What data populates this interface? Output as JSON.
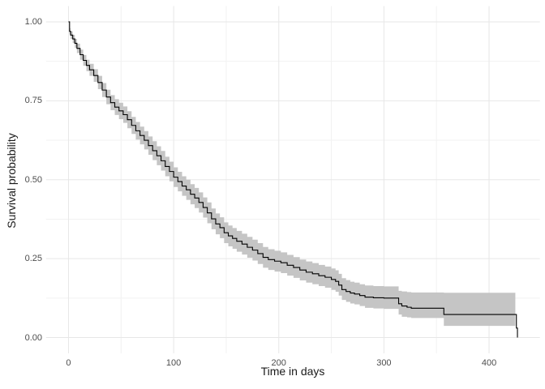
{
  "chart_data": {
    "type": "line",
    "subtype": "kaplan-meier-step-with-confidence-band",
    "title": "",
    "xlabel": "Time in days",
    "ylabel": "Survival probability",
    "x_ticks": [
      0,
      100,
      200,
      300,
      400
    ],
    "x_tick_labels": [
      "0",
      "100",
      "200",
      "300",
      "400"
    ],
    "x_minor_ticks": [
      50,
      150,
      250,
      350
    ],
    "y_ticks": [
      0.0,
      0.25,
      0.5,
      0.75,
      1.0
    ],
    "y_tick_labels": [
      "0.00",
      "0.25",
      "0.50",
      "0.75",
      "1.00"
    ],
    "y_minor_ticks": [
      0.125,
      0.375,
      0.625,
      0.875
    ],
    "xlim": [
      -21.35,
      448.35
    ],
    "ylim": [
      -0.05,
      1.05
    ],
    "grid": "major+minor",
    "legend": "none",
    "colors": {
      "line": "#000000",
      "ci_band": "#c5c5c5",
      "grid_major": "#e7e7e7",
      "grid_minor": "#f2f2f2",
      "tick_label": "#4d4d4d",
      "axis_title": "#1a1a1a",
      "background": "#ffffff"
    },
    "series": [
      {
        "name": "survival",
        "step": "after",
        "points": [
          [
            0,
            1.0
          ],
          [
            1,
            0.97
          ],
          [
            2,
            0.958
          ],
          [
            4,
            0.946
          ],
          [
            6,
            0.932
          ],
          [
            8,
            0.916
          ],
          [
            11,
            0.896
          ],
          [
            14,
            0.878
          ],
          [
            17,
            0.862
          ],
          [
            20,
            0.848
          ],
          [
            24,
            0.83
          ],
          [
            28,
            0.808
          ],
          [
            32,
            0.784
          ],
          [
            36,
            0.762
          ],
          [
            40,
            0.744
          ],
          [
            44,
            0.73
          ],
          [
            48,
            0.718
          ],
          [
            52,
            0.706
          ],
          [
            56,
            0.69
          ],
          [
            60,
            0.672
          ],
          [
            64,
            0.655
          ],
          [
            68,
            0.64
          ],
          [
            72,
            0.625
          ],
          [
            76,
            0.608
          ],
          [
            80,
            0.592
          ],
          [
            84,
            0.576
          ],
          [
            88,
            0.56
          ],
          [
            92,
            0.542
          ],
          [
            96,
            0.526
          ],
          [
            100,
            0.508
          ],
          [
            104,
            0.494
          ],
          [
            108,
            0.48
          ],
          [
            112,
            0.468
          ],
          [
            116,
            0.454
          ],
          [
            120,
            0.442
          ],
          [
            124,
            0.428
          ],
          [
            128,
            0.412
          ],
          [
            132,
            0.395
          ],
          [
            136,
            0.376
          ],
          [
            140,
            0.36
          ],
          [
            144,
            0.348
          ],
          [
            148,
            0.332
          ],
          [
            152,
            0.322
          ],
          [
            156,
            0.314
          ],
          [
            160,
            0.305
          ],
          [
            165,
            0.296
          ],
          [
            170,
            0.286
          ],
          [
            175,
            0.277
          ],
          [
            180,
            0.266
          ],
          [
            185,
            0.254
          ],
          [
            190,
            0.247
          ],
          [
            196,
            0.242
          ],
          [
            202,
            0.237
          ],
          [
            208,
            0.229
          ],
          [
            214,
            0.222
          ],
          [
            220,
            0.214
          ],
          [
            226,
            0.207
          ],
          [
            232,
            0.202
          ],
          [
            238,
            0.196
          ],
          [
            244,
            0.191
          ],
          [
            250,
            0.184
          ],
          [
            254,
            0.178
          ],
          [
            257,
            0.166
          ],
          [
            260,
            0.152
          ],
          [
            264,
            0.146
          ],
          [
            268,
            0.141
          ],
          [
            272,
            0.138
          ],
          [
            277,
            0.133
          ],
          [
            282,
            0.128
          ],
          [
            290,
            0.126
          ],
          [
            300,
            0.125
          ],
          [
            313,
            0.125
          ],
          [
            314,
            0.107
          ],
          [
            317,
            0.1
          ],
          [
            322,
            0.096
          ],
          [
            326,
            0.093
          ],
          [
            357,
            0.073
          ],
          [
            425,
            0.073
          ],
          [
            426,
            0.03
          ],
          [
            427,
            0.0
          ]
        ],
        "ci_band": [
          [
            0,
            1.0,
            1.0
          ],
          [
            1,
            0.96,
            0.98
          ],
          [
            2,
            0.946,
            0.97
          ],
          [
            4,
            0.933,
            0.959
          ],
          [
            6,
            0.918,
            0.946
          ],
          [
            8,
            0.901,
            0.931
          ],
          [
            11,
            0.88,
            0.912
          ],
          [
            14,
            0.861,
            0.895
          ],
          [
            17,
            0.844,
            0.88
          ],
          [
            20,
            0.829,
            0.867
          ],
          [
            24,
            0.81,
            0.85
          ],
          [
            28,
            0.787,
            0.829
          ],
          [
            32,
            0.762,
            0.806
          ],
          [
            36,
            0.739,
            0.785
          ],
          [
            40,
            0.72,
            0.768
          ],
          [
            44,
            0.705,
            0.755
          ],
          [
            48,
            0.692,
            0.744
          ],
          [
            52,
            0.68,
            0.732
          ],
          [
            56,
            0.663,
            0.717
          ],
          [
            60,
            0.645,
            0.699
          ],
          [
            64,
            0.627,
            0.683
          ],
          [
            68,
            0.612,
            0.668
          ],
          [
            72,
            0.596,
            0.654
          ],
          [
            76,
            0.579,
            0.637
          ],
          [
            80,
            0.562,
            0.622
          ],
          [
            84,
            0.546,
            0.606
          ],
          [
            88,
            0.529,
            0.591
          ],
          [
            92,
            0.511,
            0.573
          ],
          [
            96,
            0.495,
            0.557
          ],
          [
            100,
            0.477,
            0.539
          ],
          [
            104,
            0.463,
            0.525
          ],
          [
            108,
            0.449,
            0.511
          ],
          [
            112,
            0.436,
            0.5
          ],
          [
            116,
            0.422,
            0.486
          ],
          [
            120,
            0.41,
            0.474
          ],
          [
            124,
            0.396,
            0.46
          ],
          [
            128,
            0.38,
            0.444
          ],
          [
            132,
            0.362,
            0.428
          ],
          [
            136,
            0.343,
            0.409
          ],
          [
            140,
            0.327,
            0.393
          ],
          [
            144,
            0.315,
            0.381
          ],
          [
            148,
            0.299,
            0.365
          ],
          [
            152,
            0.289,
            0.355
          ],
          [
            156,
            0.281,
            0.347
          ],
          [
            160,
            0.272,
            0.338
          ],
          [
            165,
            0.263,
            0.329
          ],
          [
            170,
            0.253,
            0.319
          ],
          [
            175,
            0.244,
            0.31
          ],
          [
            180,
            0.233,
            0.299
          ],
          [
            185,
            0.221,
            0.287
          ],
          [
            190,
            0.214,
            0.28
          ],
          [
            196,
            0.209,
            0.275
          ],
          [
            202,
            0.204,
            0.27
          ],
          [
            208,
            0.196,
            0.262
          ],
          [
            214,
            0.189,
            0.255
          ],
          [
            220,
            0.181,
            0.247
          ],
          [
            226,
            0.174,
            0.241
          ],
          [
            232,
            0.169,
            0.236
          ],
          [
            238,
            0.163,
            0.23
          ],
          [
            244,
            0.158,
            0.225
          ],
          [
            250,
            0.151,
            0.219
          ],
          [
            254,
            0.145,
            0.213
          ],
          [
            257,
            0.133,
            0.202
          ],
          [
            260,
            0.119,
            0.188
          ],
          [
            264,
            0.113,
            0.182
          ],
          [
            268,
            0.108,
            0.177
          ],
          [
            272,
            0.105,
            0.174
          ],
          [
            277,
            0.1,
            0.169
          ],
          [
            282,
            0.094,
            0.165
          ],
          [
            290,
            0.092,
            0.163
          ],
          [
            300,
            0.091,
            0.162
          ],
          [
            313,
            0.091,
            0.162
          ],
          [
            314,
            0.073,
            0.148
          ],
          [
            317,
            0.066,
            0.146
          ],
          [
            322,
            0.064,
            0.144
          ],
          [
            326,
            0.062,
            0.143
          ],
          [
            357,
            0.037,
            0.142
          ],
          [
            425,
            0.037,
            0.142
          ]
        ]
      }
    ]
  }
}
